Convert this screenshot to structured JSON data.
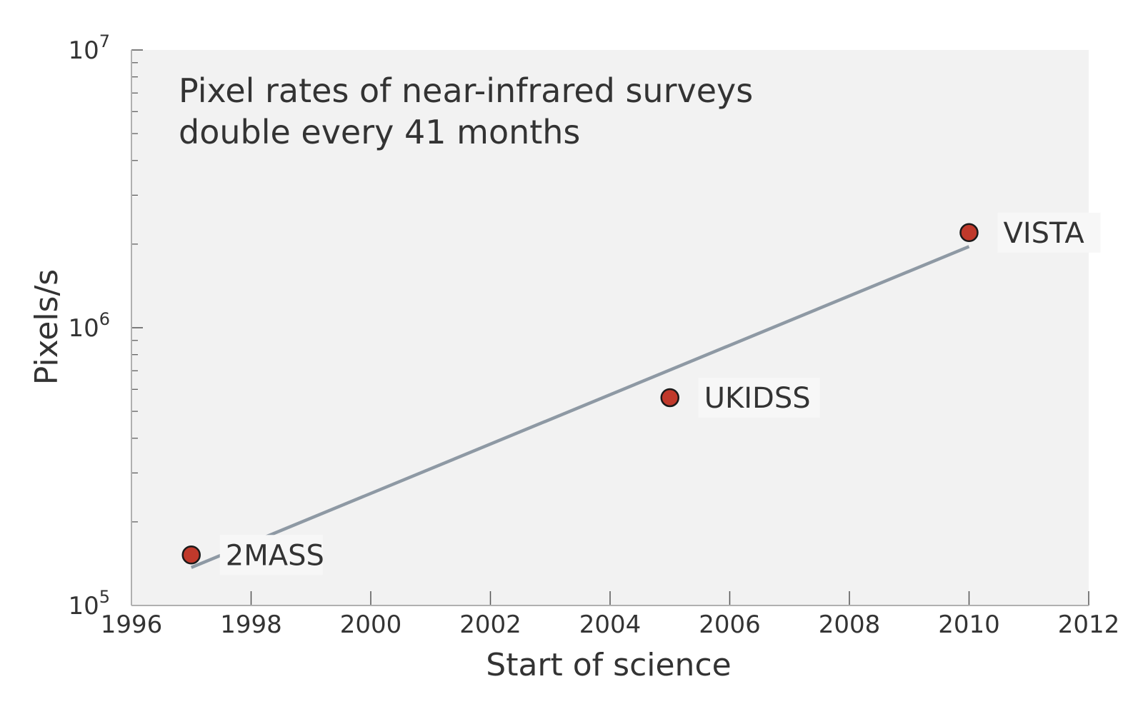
{
  "chart_data": {
    "type": "scatter",
    "title": "",
    "annotation": [
      "Pixel rates of near-infrared surveys",
      "double every 41 months"
    ],
    "xlabel": "Start of science",
    "ylabel": "Pixels/s",
    "xlim": [
      1996,
      2012
    ],
    "ylim": [
      100000,
      10000000
    ],
    "yscale": "log",
    "xticks": [
      1996,
      1998,
      2000,
      2002,
      2004,
      2006,
      2008,
      2010,
      2012
    ],
    "xtick_labels": [
      "1996",
      "1998",
      "2000",
      "2002",
      "2004",
      "2006",
      "2008",
      "2010",
      "2012"
    ],
    "yticks": [
      {
        "value": 100000,
        "base": "10",
        "exp": "5"
      },
      {
        "value": 1000000,
        "base": "10",
        "exp": "6"
      },
      {
        "value": 10000000,
        "base": "10",
        "exp": "7"
      }
    ],
    "points": [
      {
        "label": "2MASS",
        "x": 1997.0,
        "y": 152000
      },
      {
        "label": "UKIDSS",
        "x": 2005.0,
        "y": 560000
      },
      {
        "label": "VISTA",
        "x": 2010.0,
        "y": 2200000
      }
    ],
    "trend_line": {
      "x": [
        1997.0,
        2010.0
      ],
      "y": [
        137000,
        1960000
      ]
    },
    "grid": false,
    "colors": {
      "plot_background": "#f2f2f2",
      "marker_fill": "#c0392b",
      "marker_edge": "#1a1a1a",
      "trend_line": "#8e99a4",
      "axis": "#b0b0b0",
      "text": "#333333"
    }
  }
}
